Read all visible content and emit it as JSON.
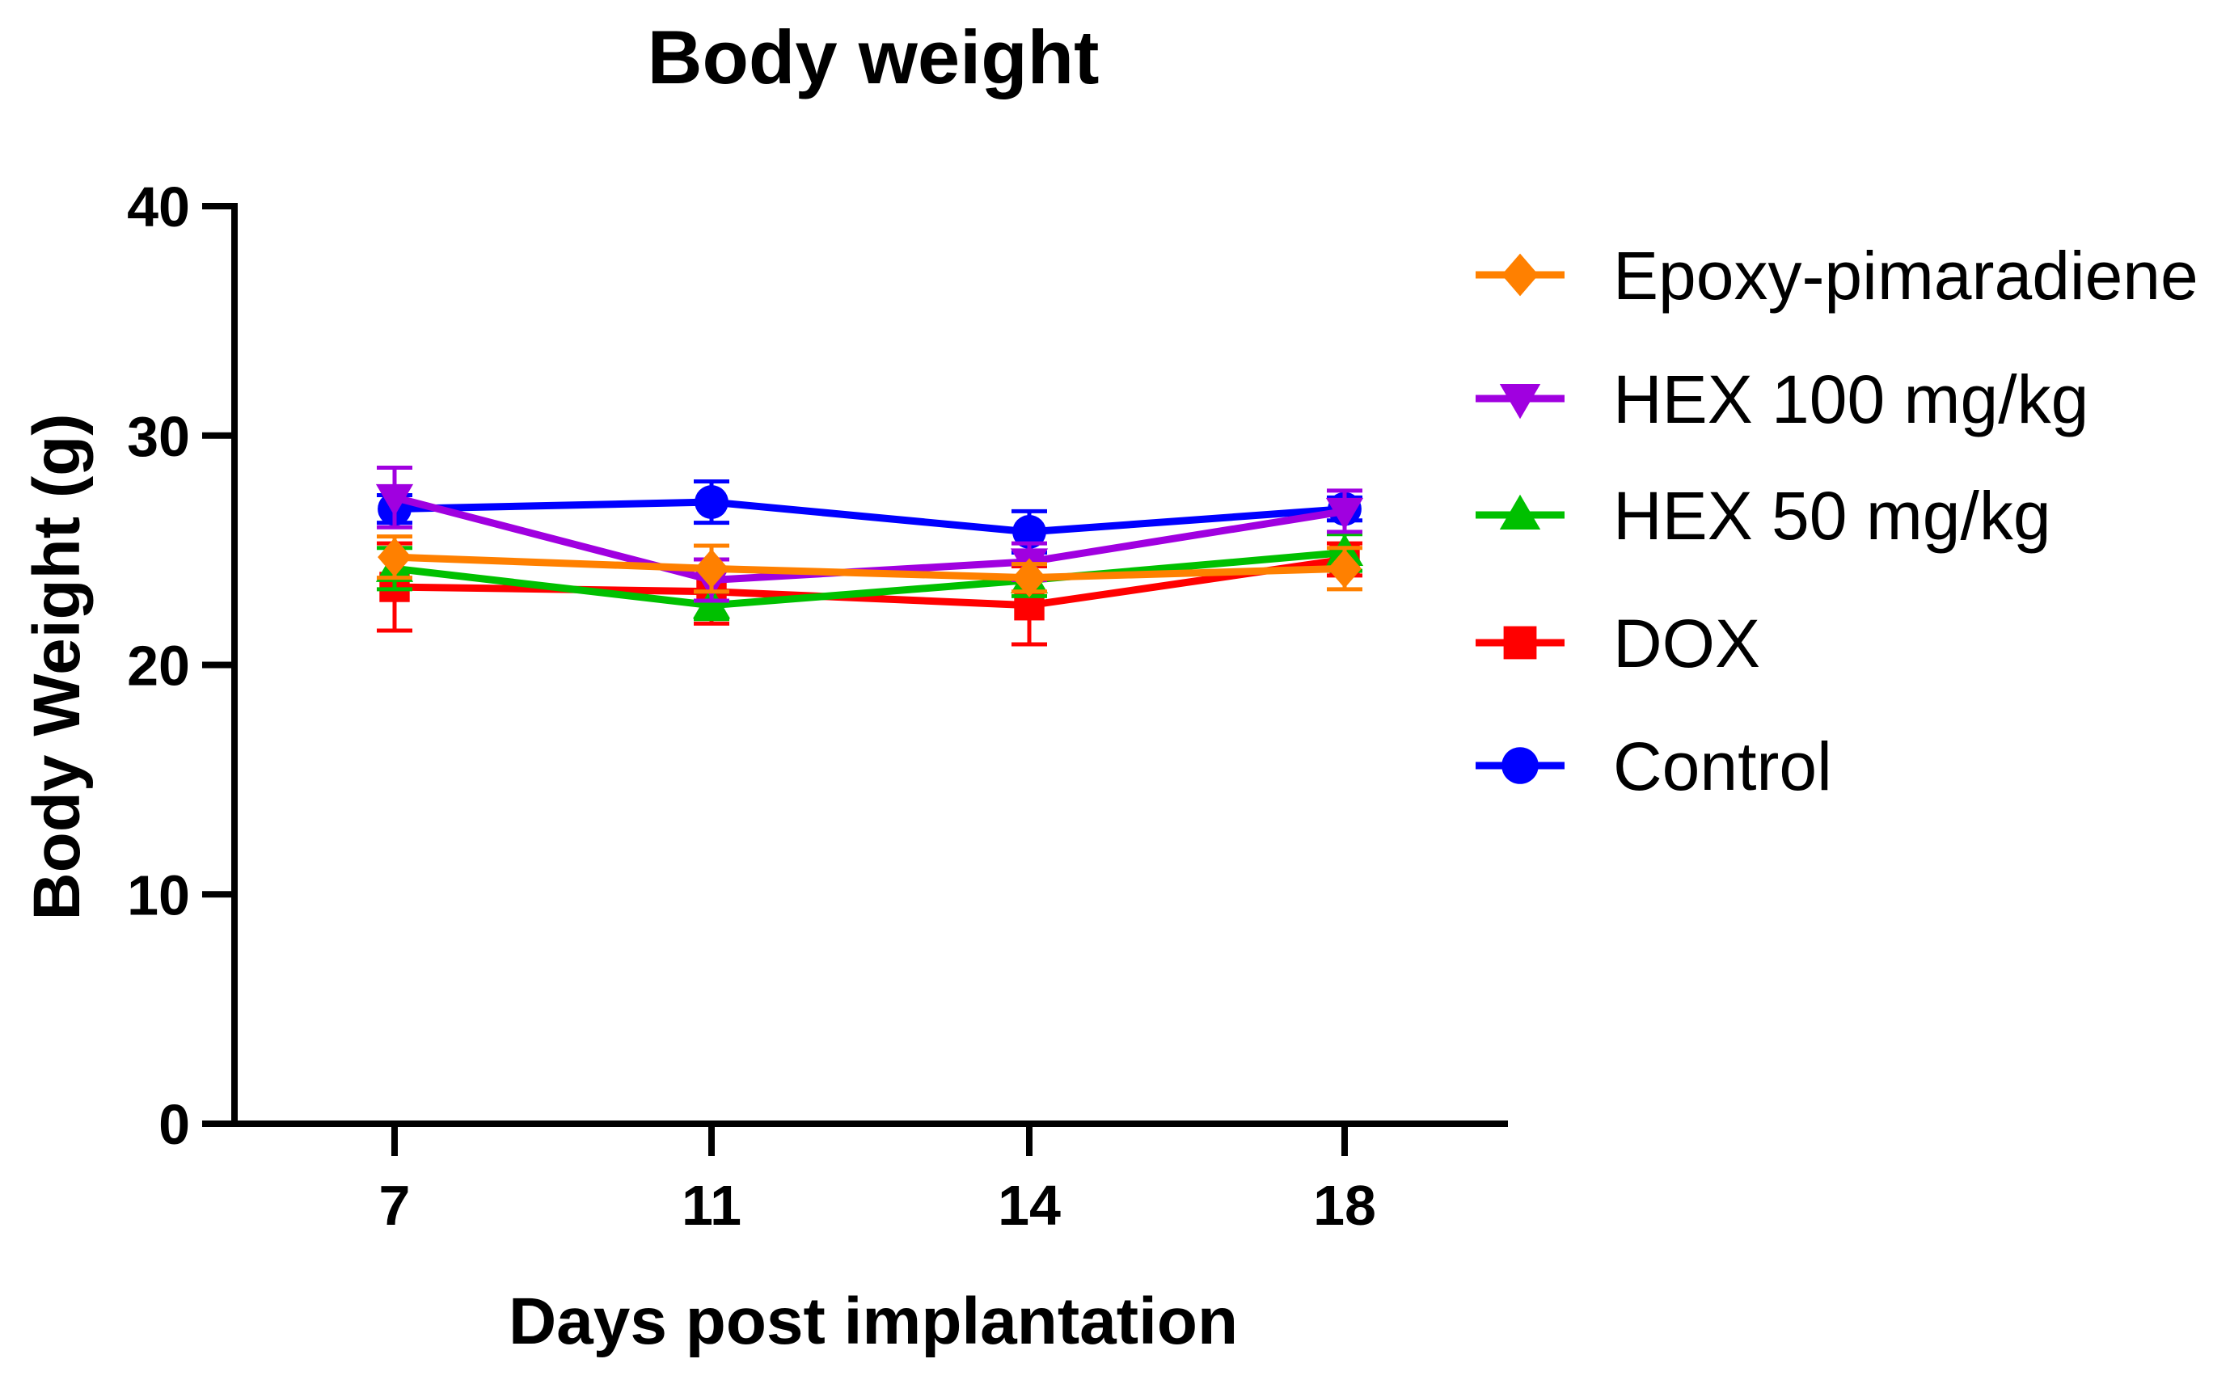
{
  "chart_data": {
    "type": "line",
    "title": "Body weight",
    "xlabel": "Days post implantation",
    "ylabel": "Body Weight (g)",
    "ylim": [
      0,
      40
    ],
    "yticks": [
      0,
      10,
      20,
      30,
      40
    ],
    "x": [
      7,
      11,
      14,
      18
    ],
    "xtick_labels": [
      "7",
      "11",
      "14",
      "18"
    ],
    "legend_position": "right",
    "series": [
      {
        "name": "Control",
        "color": "#0000ff",
        "marker": "circle",
        "values": [
          26.8,
          27.1,
          25.8,
          26.8
        ],
        "error": [
          0.6,
          0.9,
          0.9,
          0.5
        ]
      },
      {
        "name": "DOX",
        "color": "#ff0000",
        "marker": "square",
        "values": [
          23.4,
          23.2,
          22.6,
          24.6
        ],
        "error": [
          1.9,
          1.4,
          1.7,
          0.7
        ]
      },
      {
        "name": "HEX 50 mg/kg",
        "color": "#00c000",
        "marker": "triangle-up",
        "values": [
          24.2,
          22.6,
          23.7,
          24.9
        ],
        "error": [
          0.9,
          0.6,
          0.7,
          0.8
        ]
      },
      {
        "name": "HEX 100 mg/kg",
        "color": "#a000e0",
        "marker": "triangle-down",
        "values": [
          27.3,
          23.7,
          24.5,
          26.7
        ],
        "error": [
          1.3,
          0.9,
          0.8,
          0.9
        ]
      },
      {
        "name": "Epoxy-pimaradiene",
        "color": "#ff8000",
        "marker": "diamond",
        "values": [
          24.7,
          24.2,
          23.8,
          24.2
        ],
        "error": [
          0.9,
          1.0,
          0.6,
          0.9
        ]
      }
    ],
    "legend_order": [
      "Epoxy-pimaradiene",
      "HEX 100 mg/kg",
      "HEX 50 mg/kg",
      "DOX",
      "Control"
    ]
  }
}
